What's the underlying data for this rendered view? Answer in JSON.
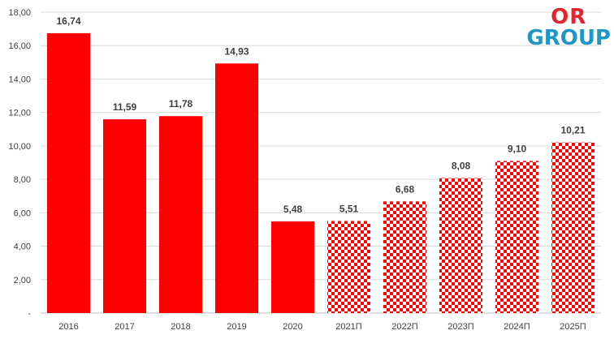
{
  "logo": {
    "top": "OR",
    "bottom": "GROUP"
  },
  "colors": {
    "bar": "#ff0000",
    "pattern_light": "#ffffff",
    "text": "#404040",
    "grid": "#d9d9d9",
    "logo_red": "#e3262e",
    "logo_blue": "#1f97c4"
  },
  "chart_data": {
    "type": "bar",
    "title": "",
    "xlabel": "",
    "ylabel": "",
    "ylim": [
      0,
      18
    ],
    "grid": true,
    "legend": "none",
    "y_ticks": [
      {
        "value": 0,
        "label": "-"
      },
      {
        "value": 2,
        "label": "2,00"
      },
      {
        "value": 4,
        "label": "4,00"
      },
      {
        "value": 6,
        "label": "6,00"
      },
      {
        "value": 8,
        "label": "8,00"
      },
      {
        "value": 10,
        "label": "10,00"
      },
      {
        "value": 12,
        "label": "12,00"
      },
      {
        "value": 14,
        "label": "14,00"
      },
      {
        "value": 16,
        "label": "16,00"
      },
      {
        "value": 18,
        "label": "18,00"
      }
    ],
    "categories": [
      "2016",
      "2017",
      "2018",
      "2019",
      "2020",
      "2021П",
      "2022П",
      "2023П",
      "2024П",
      "2025П"
    ],
    "values": [
      16.74,
      11.59,
      11.78,
      14.93,
      5.48,
      5.51,
      6.68,
      8.08,
      9.1,
      10.21
    ],
    "value_labels": [
      "16,74",
      "11,59",
      "11,78",
      "14,93",
      "5,48",
      "5,51",
      "6,68",
      "8,08",
      "9,10",
      "10,21"
    ],
    "styles": [
      "solid",
      "solid",
      "solid",
      "solid",
      "solid",
      "checkered",
      "checkered",
      "checkered",
      "checkered",
      "checkered"
    ]
  }
}
